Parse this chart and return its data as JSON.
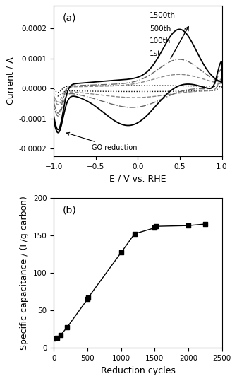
{
  "panel_a_label": "(a)",
  "panel_b_label": "(b)",
  "xlabel_a": "E / V vs. RHE",
  "ylabel_a": "Current / A",
  "xlabel_b": "Reduction cycles",
  "ylabel_b": "Specific capacitance / (F/g carbon)",
  "xlim_a": [
    -1.0,
    1.0
  ],
  "ylim_a": [
    -0.000225,
    0.000275
  ],
  "xticks_a": [
    -1.0,
    -0.5,
    0.0,
    0.5,
    1.0
  ],
  "yticks_a": [
    -0.0002,
    -0.0001,
    0.0,
    0.0001,
    0.0002
  ],
  "xlim_b": [
    0,
    2500
  ],
  "ylim_b": [
    0,
    200
  ],
  "xticks_b": [
    0,
    500,
    1000,
    1500,
    2000,
    2500
  ],
  "yticks_b": [
    0,
    50,
    100,
    150,
    200
  ],
  "scatter_x": [
    1,
    50,
    100,
    200,
    500,
    510,
    1000,
    1200,
    1500,
    1520,
    2000,
    2250
  ],
  "scatter_y": [
    13,
    14,
    17,
    28,
    65,
    67,
    127,
    152,
    160,
    162,
    163,
    165
  ],
  "go_reduction_label": "GO reduction",
  "legend_labels": [
    "1500th",
    "500th",
    "100th",
    "1st"
  ],
  "background_color": "#ffffff"
}
